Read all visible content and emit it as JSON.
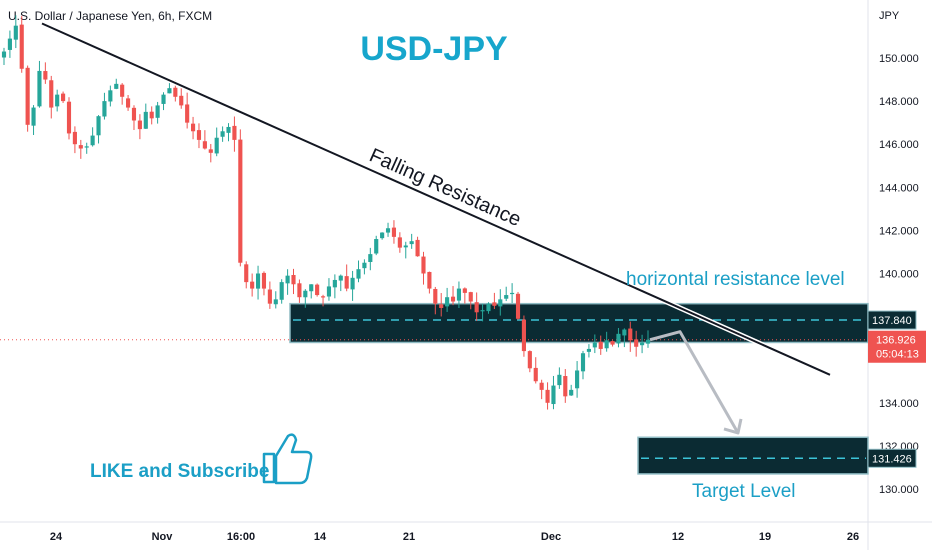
{
  "chart_data": {
    "type": "candlestick",
    "symbol_line": "U.S. Dollar / Japanese Yen, 6h, FXCM",
    "currency": "JPY",
    "title": "USD-JPY",
    "y_ticks": [
      130,
      132,
      134,
      136,
      138,
      140,
      142,
      144,
      146,
      148,
      150
    ],
    "y_tick_labels": [
      "130.000",
      "132.000",
      "134.000",
      "",
      "",
      "140.000",
      "142.000",
      "144.000",
      "146.000",
      "148.000",
      "150.000"
    ],
    "ylim": [
      129.2,
      152.2
    ],
    "x_ticks": [
      "24",
      "Nov",
      "16:00",
      "14",
      "21",
      "Dec",
      "12",
      "19",
      "26"
    ],
    "close_path": [
      150.3,
      150.9,
      151.5,
      149.5,
      146.9,
      147.7,
      149.4,
      149.0,
      147.7,
      148.3,
      148.0,
      146.5,
      146.0,
      145.8,
      145.9,
      146.4,
      147.3,
      148.0,
      148.5,
      148.8,
      148.2,
      147.7,
      147.1,
      146.7,
      147.5,
      147.2,
      147.8,
      148.3,
      148.6,
      148.2,
      147.8,
      147.0,
      146.6,
      146.2,
      145.8,
      145.6,
      146.3,
      146.6,
      146.8,
      146.2,
      140.5,
      139.6,
      139.3,
      140.0,
      139.3,
      138.6,
      138.8,
      139.6,
      139.9,
      139.5,
      138.9,
      139.2,
      139.5,
      139.0,
      138.9,
      139.4,
      139.7,
      139.9,
      139.3,
      139.8,
      140.2,
      140.5,
      140.9,
      141.6,
      141.9,
      142.1,
      141.7,
      141.2,
      141.3,
      141.5,
      140.8,
      140.0,
      139.3,
      138.6,
      138.4,
      138.9,
      138.7,
      139.3,
      139.1,
      138.7,
      138.2,
      138.3,
      138.6,
      138.5,
      138.8,
      139.0,
      139.1,
      137.9,
      136.4,
      135.6,
      135.0,
      134.6,
      134.0,
      134.8,
      135.3,
      134.3,
      134.6,
      135.5,
      136.3,
      136.5,
      136.8,
      136.5,
      136.9,
      136.7,
      137.2,
      137.4,
      136.9,
      136.6,
      136.8,
      136.926
    ],
    "trendline": {
      "label": "Falling Resistance",
      "start_price": 151.6,
      "end_price": 135.3
    },
    "resistance_zone": {
      "label": "horizontal resistance level",
      "price": "137.840",
      "value": 137.84,
      "low": 136.8,
      "high": 138.6
    },
    "target_zone": {
      "label": "Target Level",
      "price": "131.426",
      "value": 131.426,
      "low": 130.7,
      "high": 132.4
    },
    "current_price": {
      "value": 136.926,
      "label": "136.926",
      "countdown": "05:04:13"
    },
    "projection": [
      136.926,
      137.3,
      132.6
    ],
    "cta": "LIKE and Subscribe",
    "colors": {
      "up": "#26a69a",
      "down": "#ef5350",
      "zone_fill": "#0b2b33",
      "zone_border": "#8fbcc4",
      "title": "#17a6cc",
      "accent": "#1b9fc6",
      "arrow": "#b8bcc3"
    }
  }
}
